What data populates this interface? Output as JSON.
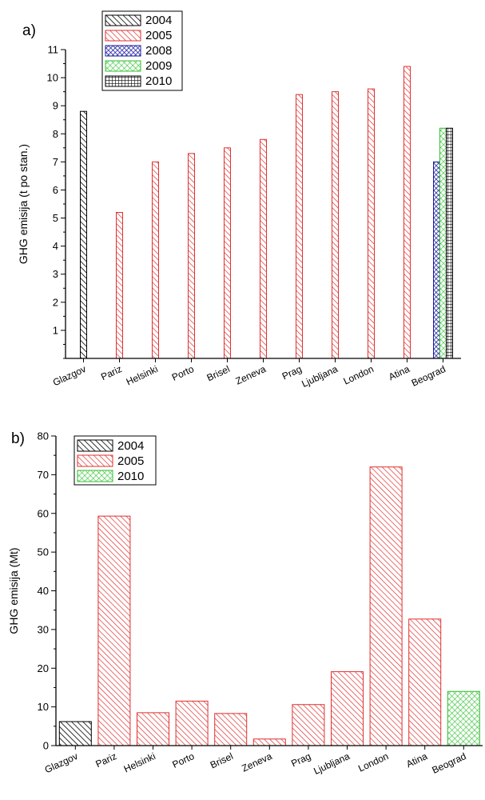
{
  "chart_data": [
    {
      "panel_label": "a)",
      "type": "bar",
      "ylabel": "GHG emisija (t po stan.)",
      "xlabel": "",
      "ylim": [
        0,
        11
      ],
      "yticks": [
        1,
        2,
        3,
        4,
        5,
        6,
        7,
        8,
        9,
        10,
        11
      ],
      "categories": [
        "Glazgov",
        "Pariz",
        "Helsinki",
        "Porto",
        "Brisel",
        "Zeneva",
        "Prag",
        "Ljubljana",
        "London",
        "Atina",
        "Beograd"
      ],
      "legend_position": "top-left",
      "series": [
        {
          "name": "2004",
          "color": "#000000",
          "pattern": "diag",
          "values": [
            8.8,
            null,
            null,
            null,
            null,
            null,
            null,
            null,
            null,
            null,
            null
          ]
        },
        {
          "name": "2005",
          "color": "#e03030",
          "pattern": "diag",
          "values": [
            null,
            5.2,
            7.0,
            7.3,
            7.5,
            7.8,
            9.4,
            9.5,
            9.6,
            10.4,
            null
          ]
        },
        {
          "name": "2008",
          "color": "#1a1aa0",
          "pattern": "cross",
          "values": [
            null,
            null,
            null,
            null,
            null,
            null,
            null,
            null,
            null,
            null,
            7.0
          ]
        },
        {
          "name": "2009",
          "color": "#30c030",
          "pattern": "cross",
          "values": [
            null,
            null,
            null,
            null,
            null,
            null,
            null,
            null,
            null,
            null,
            8.2
          ]
        },
        {
          "name": "2010",
          "color": "#000000",
          "pattern": "grid",
          "values": [
            null,
            null,
            null,
            null,
            null,
            null,
            null,
            null,
            null,
            null,
            8.2
          ]
        }
      ]
    },
    {
      "panel_label": "b)",
      "type": "bar",
      "ylabel": "GHG emisija (Mt)",
      "xlabel": "",
      "ylim": [
        0,
        80
      ],
      "yticks": [
        0,
        10,
        20,
        30,
        40,
        50,
        60,
        70,
        80
      ],
      "categories": [
        "Glazgov",
        "Pariz",
        "Helsinki",
        "Porto",
        "Brisel",
        "Zeneva",
        "Prag",
        "Ljubljana",
        "London",
        "Atina",
        "Beograd"
      ],
      "legend_position": "top-left",
      "series": [
        {
          "name": "2004",
          "color": "#000000",
          "pattern": "diag",
          "values": [
            6.2,
            null,
            null,
            null,
            null,
            null,
            null,
            null,
            null,
            null,
            null
          ]
        },
        {
          "name": "2005",
          "color": "#e03030",
          "pattern": "diag",
          "values": [
            null,
            59.3,
            8.5,
            11.5,
            8.3,
            1.7,
            10.6,
            19.1,
            72.0,
            32.7,
            null
          ]
        },
        {
          "name": "2010",
          "color": "#30c030",
          "pattern": "cross",
          "values": [
            null,
            null,
            null,
            null,
            null,
            null,
            null,
            null,
            null,
            null,
            14.0
          ]
        }
      ]
    }
  ]
}
